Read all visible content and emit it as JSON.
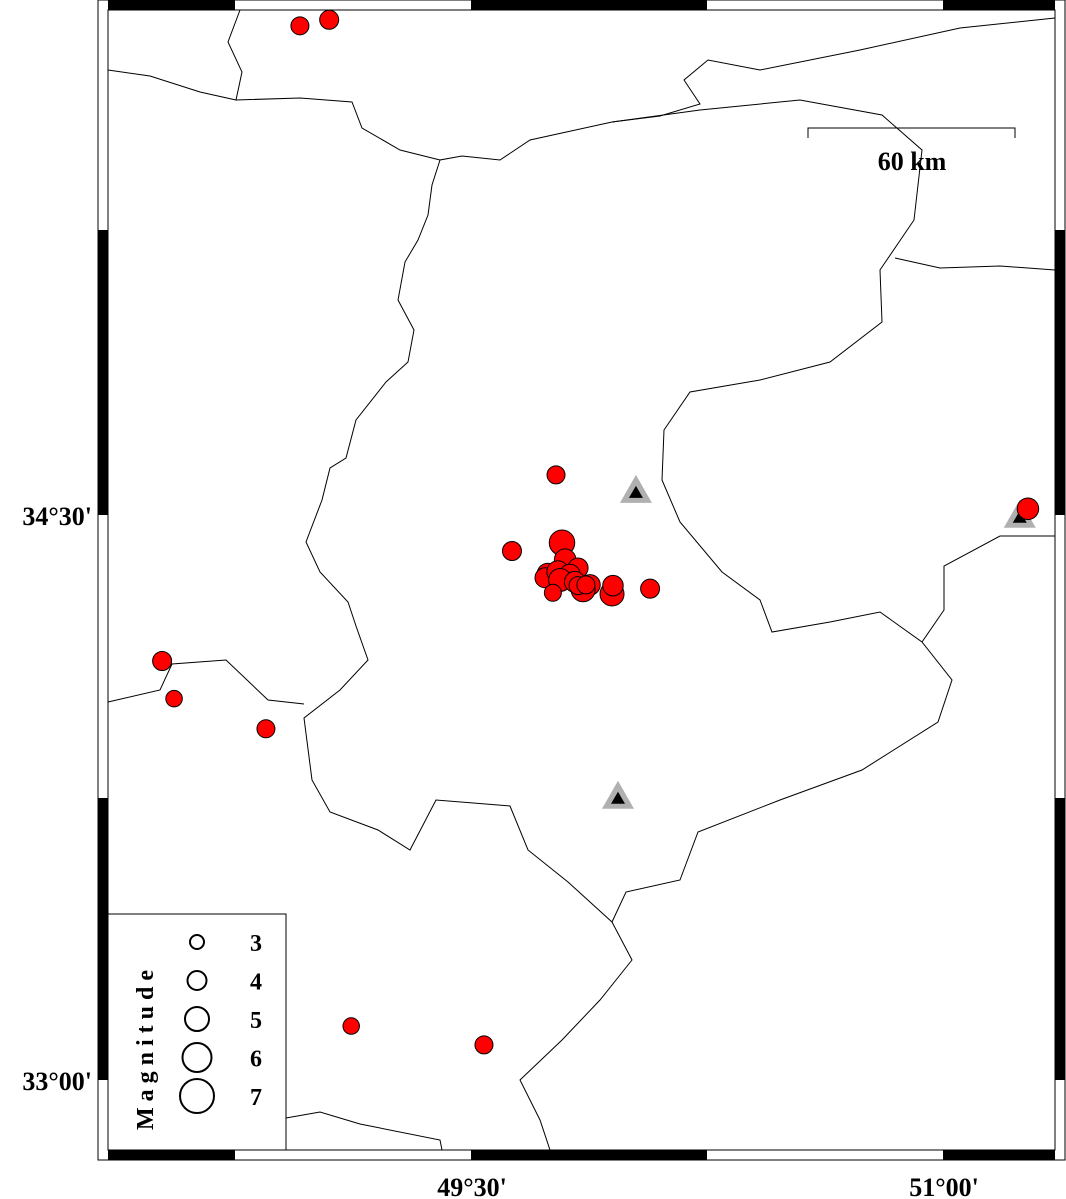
{
  "map": {
    "extent": {
      "lon_min": 48.343,
      "lon_max": 51.353,
      "lat_min": 32.814,
      "lat_max": 35.84
    },
    "x_ticks": [
      {
        "lon": 49.5,
        "label": "49°30'"
      },
      {
        "lon": 51.0,
        "label": "51°00'"
      }
    ],
    "y_ticks": [
      {
        "lat": 34.5,
        "label": "34°30'"
      },
      {
        "lat": 33.0,
        "label": "33°00'"
      }
    ],
    "scale_bar": {
      "label": "60 km",
      "km": 60
    },
    "event_color": "#ff0000",
    "station_color": "#b0b0b0",
    "events": [
      {
        "lon": 48.953,
        "lat": 35.798,
        "mag": 3.8
      },
      {
        "lon": 49.046,
        "lat": 35.814,
        "mag": 4.0
      },
      {
        "lon": 49.767,
        "lat": 34.606,
        "mag": 3.8
      },
      {
        "lon": 49.627,
        "lat": 34.404,
        "mag": 4.0
      },
      {
        "lon": 49.786,
        "lat": 34.426,
        "mag": 5.3
      },
      {
        "lon": 49.796,
        "lat": 34.381,
        "mag": 4.5
      },
      {
        "lon": 49.837,
        "lat": 34.359,
        "mag": 4.2
      },
      {
        "lon": 49.741,
        "lat": 34.343,
        "mag": 4.5
      },
      {
        "lon": 49.732,
        "lat": 34.333,
        "mag": 4.2
      },
      {
        "lon": 49.773,
        "lat": 34.349,
        "mag": 4.6
      },
      {
        "lon": 49.811,
        "lat": 34.341,
        "mag": 4.4
      },
      {
        "lon": 49.78,
        "lat": 34.327,
        "mag": 4.8
      },
      {
        "lon": 49.827,
        "lat": 34.322,
        "mag": 4.4
      },
      {
        "lon": 49.875,
        "lat": 34.314,
        "mag": 4.3
      },
      {
        "lon": 49.853,
        "lat": 34.301,
        "mag": 5.0
      },
      {
        "lon": 49.837,
        "lat": 34.312,
        "mag": 3.8
      },
      {
        "lon": 49.862,
        "lat": 34.314,
        "mag": 3.8
      },
      {
        "lon": 49.757,
        "lat": 34.293,
        "mag": 3.6
      },
      {
        "lon": 49.945,
        "lat": 34.29,
        "mag": 5.0
      },
      {
        "lon": 49.948,
        "lat": 34.312,
        "mag": 4.3
      },
      {
        "lon": 50.066,
        "lat": 34.304,
        "mag": 4.0
      },
      {
        "lon": 51.267,
        "lat": 34.516,
        "mag": 4.5
      },
      {
        "lon": 48.515,
        "lat": 34.112,
        "mag": 4.0
      },
      {
        "lon": 48.553,
        "lat": 34.012,
        "mag": 3.5
      },
      {
        "lon": 48.845,
        "lat": 33.932,
        "mag": 3.8
      },
      {
        "lon": 49.116,
        "lat": 33.143,
        "mag": 3.5
      },
      {
        "lon": 49.538,
        "lat": 33.093,
        "mag": 3.8
      }
    ],
    "stations": [
      {
        "lon": 50.021,
        "lat": 34.561
      },
      {
        "lon": 49.964,
        "lat": 33.749
      },
      {
        "lon": 51.241,
        "lat": 34.495
      }
    ]
  },
  "legend": {
    "title": "Magnitude",
    "items": [
      {
        "mag": 3,
        "label": "3"
      },
      {
        "mag": 4,
        "label": "4"
      },
      {
        "mag": 5,
        "label": "5"
      },
      {
        "mag": 6,
        "label": "6"
      },
      {
        "mag": 7,
        "label": "7"
      }
    ]
  }
}
